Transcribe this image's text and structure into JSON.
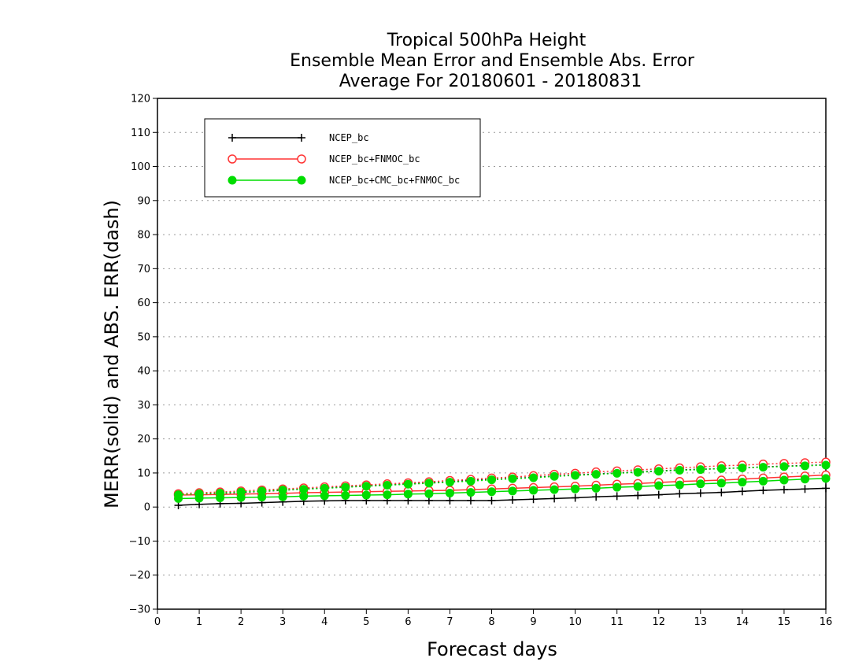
{
  "chart_data": {
    "type": "line",
    "title": "Tropical 500hPa Height",
    "subtitle_1": "Ensemble Mean Error and Ensemble Abs. Error",
    "subtitle_2": "Average For 20180601 - 20180831",
    "xlabel": "Forecast days",
    "ylabel": "MERR(solid) and ABS. ERR(dash)",
    "xlim": [
      0,
      16
    ],
    "ylim": [
      -30,
      120
    ],
    "xticks": [
      0,
      1,
      2,
      3,
      4,
      5,
      6,
      7,
      8,
      9,
      10,
      11,
      12,
      13,
      14,
      15,
      16
    ],
    "yticks": [
      -30,
      -20,
      -10,
      0,
      10,
      20,
      30,
      40,
      50,
      60,
      70,
      80,
      90,
      100,
      110,
      120
    ],
    "grid": "horizontal dotted",
    "legend_position": "top-left",
    "x": [
      0.5,
      1,
      1.5,
      2,
      2.5,
      3,
      3.5,
      4,
      4.5,
      5,
      5.5,
      6,
      6.5,
      7,
      7.5,
      8,
      8.5,
      9,
      9.5,
      10,
      10.5,
      11,
      11.5,
      12,
      12.5,
      13,
      13.5,
      14,
      14.5,
      15,
      15.5,
      16
    ],
    "series": [
      {
        "name": "NCEP_bc",
        "color": "#000000",
        "marker": "plus",
        "merr": [
          0.5,
          0.8,
          1.0,
          1.1,
          1.3,
          1.5,
          1.7,
          1.8,
          1.9,
          1.9,
          1.9,
          1.9,
          1.9,
          1.9,
          1.9,
          1.9,
          2.1,
          2.3,
          2.5,
          2.7,
          3.0,
          3.2,
          3.4,
          3.6,
          3.9,
          4.1,
          4.3,
          4.6,
          4.9,
          5.1,
          5.3,
          5.5
        ],
        "abs_err": [
          3.5,
          3.8,
          4.0,
          4.3,
          4.6,
          4.9,
          5.3,
          5.6,
          5.9,
          6.2,
          6.5,
          6.8,
          7.1,
          7.4,
          7.8,
          8.1,
          8.4,
          8.7,
          9.1,
          9.4,
          9.7,
          10.0,
          10.3,
          10.6,
          10.9,
          11.1,
          11.3,
          11.5,
          11.8,
          12.0,
          12.2,
          12.4
        ]
      },
      {
        "name": "NCEP_bc+FNMOC_bc",
        "color": "#ff3333",
        "marker": "open-circle",
        "merr": [
          3.5,
          3.6,
          3.7,
          3.8,
          3.9,
          4.0,
          4.2,
          4.3,
          4.4,
          4.5,
          4.6,
          4.7,
          4.8,
          4.9,
          5.1,
          5.3,
          5.5,
          5.7,
          5.9,
          6.1,
          6.4,
          6.7,
          6.9,
          7.2,
          7.5,
          7.7,
          7.9,
          8.2,
          8.5,
          8.8,
          9.1,
          9.4
        ],
        "abs_err": [
          3.9,
          4.2,
          4.4,
          4.7,
          5.0,
          5.3,
          5.6,
          5.9,
          6.2,
          6.5,
          6.8,
          7.1,
          7.4,
          7.8,
          8.1,
          8.5,
          8.8,
          9.2,
          9.6,
          9.9,
          10.3,
          10.6,
          10.9,
          11.2,
          11.5,
          11.8,
          12.1,
          12.3,
          12.6,
          12.8,
          13.0,
          13.2
        ]
      },
      {
        "name": "NCEP_bc+CMC_bc+FNMOC_bc",
        "color": "#00dd00",
        "marker": "filled-circle",
        "merr": [
          2.5,
          2.6,
          2.7,
          2.8,
          2.9,
          3.0,
          3.2,
          3.3,
          3.4,
          3.5,
          3.6,
          3.8,
          3.9,
          4.1,
          4.3,
          4.5,
          4.7,
          4.9,
          5.1,
          5.3,
          5.5,
          5.8,
          6.0,
          6.3,
          6.5,
          6.8,
          7.0,
          7.3,
          7.6,
          7.9,
          8.2,
          8.4
        ],
        "abs_err": [
          3.6,
          3.9,
          4.1,
          4.4,
          4.7,
          5.0,
          5.2,
          5.5,
          5.8,
          6.1,
          6.4,
          6.7,
          7.0,
          7.3,
          7.6,
          8.0,
          8.3,
          8.6,
          9.0,
          9.3,
          9.6,
          9.9,
          10.2,
          10.5,
          10.8,
          11.0,
          11.3,
          11.5,
          11.7,
          11.9,
          12.1,
          12.3
        ]
      }
    ]
  }
}
